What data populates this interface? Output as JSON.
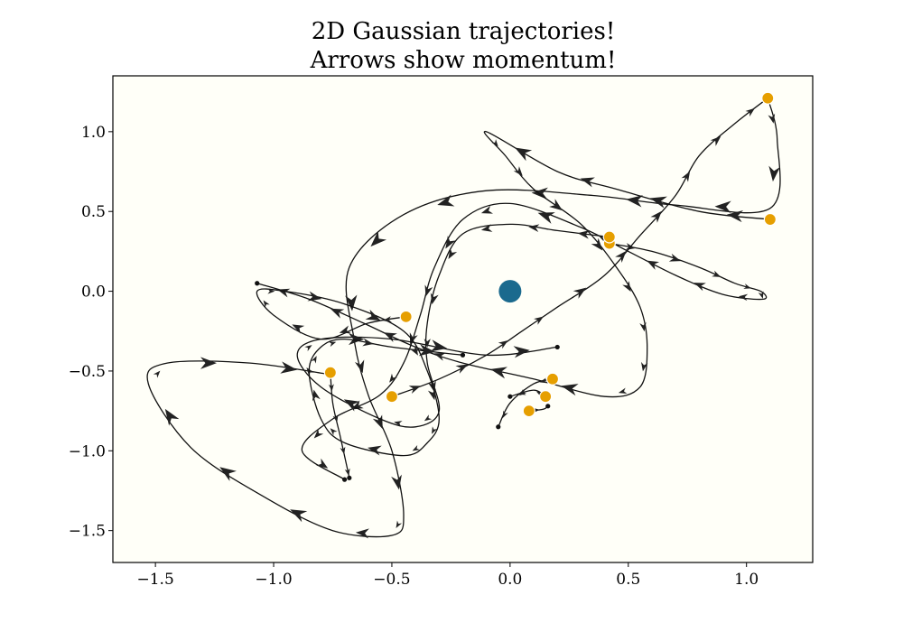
{
  "chart_data": {
    "type": "line",
    "title_lines": [
      "2D Gaussian trajectories!",
      "Arrows show momentum!"
    ],
    "xlim": [
      -1.68,
      1.28
    ],
    "ylim": [
      -1.7,
      1.35
    ],
    "xticks": [
      -1.5,
      -1.0,
      -0.5,
      0.0,
      0.5,
      1.0
    ],
    "yticks": [
      -1.5,
      -1.0,
      -0.5,
      0.0,
      0.5,
      1.0
    ],
    "xtick_labels": [
      "−1.5",
      "−1.0",
      "−0.5",
      "0.0",
      "0.5",
      "1.0"
    ],
    "ytick_labels": [
      "−1.5",
      "−1.0",
      "−0.5",
      "0.0",
      "0.5",
      "1.0"
    ],
    "grid": false,
    "colors": {
      "background": "#fffff8",
      "trajectory": "#111111",
      "start_marker": "#e69f00",
      "center_marker": "#1b6a8e"
    },
    "center": {
      "x": 0.0,
      "y": 0.0
    },
    "series": [
      {
        "start": [
          1.09,
          1.21
        ],
        "points": [
          [
            1.09,
            1.21
          ],
          [
            1.13,
            0.95
          ],
          [
            1.1,
            0.52
          ],
          [
            0.7,
            0.54
          ],
          [
            0.35,
            0.6
          ],
          [
            -0.1,
            0.63
          ],
          [
            -0.45,
            0.48
          ],
          [
            -0.68,
            0.15
          ],
          [
            -0.66,
            -0.3
          ],
          [
            -0.6,
            -0.65
          ],
          [
            -0.5,
            -1.0
          ],
          [
            -0.45,
            -1.4
          ],
          [
            -0.5,
            -1.53
          ],
          [
            -0.75,
            -1.5
          ],
          [
            -1.05,
            -1.28
          ],
          [
            -1.35,
            -0.98
          ],
          [
            -1.53,
            -0.58
          ],
          [
            -1.45,
            -0.45
          ],
          [
            -1.1,
            -0.45
          ],
          [
            -0.77,
            -0.52
          ]
        ]
      },
      {
        "start": [
          1.1,
          0.45
        ],
        "points": [
          [
            1.1,
            0.45
          ],
          [
            0.8,
            0.5
          ],
          [
            0.45,
            0.64
          ],
          [
            0.2,
            0.75
          ],
          [
            -0.1,
            1.0
          ],
          [
            -0.02,
            0.85
          ],
          [
            0.1,
            0.64
          ],
          [
            0.3,
            0.42
          ],
          [
            0.45,
            0.15
          ],
          [
            0.55,
            -0.1
          ],
          [
            0.58,
            -0.35
          ],
          [
            0.55,
            -0.6
          ],
          [
            0.4,
            -0.66
          ],
          [
            0.1,
            -0.55
          ],
          [
            -0.2,
            -0.45
          ],
          [
            -0.4,
            -0.35
          ],
          [
            -0.62,
            -0.2
          ],
          [
            -0.85,
            -0.05
          ],
          [
            -1.07,
            0.05
          ]
        ]
      },
      {
        "start": [
          0.42,
          0.3
        ],
        "points": [
          [
            0.42,
            0.3
          ],
          [
            0.6,
            0.25
          ],
          [
            0.8,
            0.15
          ],
          [
            0.95,
            0.05
          ],
          [
            1.06,
            0.0
          ],
          [
            1.07,
            -0.05
          ],
          [
            0.9,
            -0.02
          ],
          [
            0.7,
            0.1
          ],
          [
            0.5,
            0.25
          ],
          [
            0.3,
            0.4
          ],
          [
            0.0,
            0.55
          ],
          [
            -0.2,
            0.45
          ],
          [
            -0.32,
            0.15
          ],
          [
            -0.38,
            -0.15
          ],
          [
            -0.45,
            -0.45
          ],
          [
            -0.55,
            -0.65
          ],
          [
            -0.75,
            -0.8
          ],
          [
            -0.88,
            -1.0
          ],
          [
            -0.7,
            -1.18
          ]
        ]
      },
      {
        "start": [
          0.42,
          0.34
        ],
        "points": [
          [
            0.42,
            0.34
          ],
          [
            0.2,
            0.38
          ],
          [
            0.0,
            0.42
          ],
          [
            -0.2,
            0.36
          ],
          [
            -0.3,
            0.1
          ],
          [
            -0.35,
            -0.2
          ],
          [
            -0.35,
            -0.45
          ],
          [
            -0.3,
            -0.75
          ],
          [
            -0.4,
            -0.85
          ],
          [
            -0.55,
            -0.8
          ],
          [
            -0.8,
            -0.6
          ],
          [
            -0.9,
            -0.4
          ],
          [
            -0.8,
            -0.3
          ],
          [
            -0.5,
            -0.3
          ],
          [
            -0.1,
            -0.4
          ],
          [
            0.2,
            -0.35
          ]
        ]
      },
      {
        "start": [
          -0.44,
          -0.16
        ],
        "points": [
          [
            -0.44,
            -0.16
          ],
          [
            -0.6,
            -0.2
          ],
          [
            -0.8,
            -0.3
          ],
          [
            -1.0,
            -0.15
          ],
          [
            -1.07,
            0.0
          ],
          [
            -0.95,
            0.0
          ],
          [
            -0.7,
            -0.08
          ],
          [
            -0.45,
            -0.25
          ],
          [
            -0.35,
            -0.5
          ],
          [
            -0.3,
            -0.8
          ],
          [
            -0.35,
            -0.95
          ],
          [
            -0.45,
            -1.03
          ],
          [
            -0.7,
            -0.95
          ],
          [
            -0.8,
            -0.8
          ],
          [
            -0.85,
            -0.5
          ],
          [
            -0.8,
            -0.35
          ],
          [
            -0.7,
            -0.3
          ],
          [
            -0.5,
            -0.35
          ],
          [
            -0.2,
            -0.4
          ]
        ]
      },
      {
        "start": [
          -0.76,
          -0.51
        ],
        "points": [
          [
            -0.76,
            -0.51
          ],
          [
            -0.75,
            -0.7
          ],
          [
            -0.72,
            -0.9
          ],
          [
            -0.69,
            -1.1
          ],
          [
            -0.68,
            -1.17
          ]
        ]
      },
      {
        "start": [
          -0.5,
          -0.66
        ],
        "points": [
          [
            -0.5,
            -0.66
          ],
          [
            -0.3,
            -0.55
          ],
          [
            -0.1,
            -0.4
          ],
          [
            0.05,
            -0.25
          ],
          [
            0.2,
            -0.1
          ],
          [
            0.4,
            0.1
          ],
          [
            0.55,
            0.35
          ],
          [
            0.7,
            0.6
          ],
          [
            0.8,
            0.85
          ],
          [
            0.95,
            1.05
          ],
          [
            1.09,
            1.21
          ]
        ]
      },
      {
        "start": [
          0.18,
          -0.55
        ],
        "points": [
          [
            0.18,
            -0.55
          ],
          [
            0.1,
            -0.58
          ],
          [
            0.0,
            -0.7
          ],
          [
            -0.05,
            -0.85
          ]
        ]
      },
      {
        "start": [
          0.15,
          -0.66
        ],
        "points": [
          [
            0.15,
            -0.66
          ],
          [
            0.1,
            -0.62
          ],
          [
            0.0,
            -0.66
          ]
        ]
      },
      {
        "start": [
          0.08,
          -0.75
        ],
        "points": [
          [
            0.08,
            -0.75
          ],
          [
            0.14,
            -0.74
          ],
          [
            0.16,
            -0.72
          ]
        ]
      }
    ]
  }
}
